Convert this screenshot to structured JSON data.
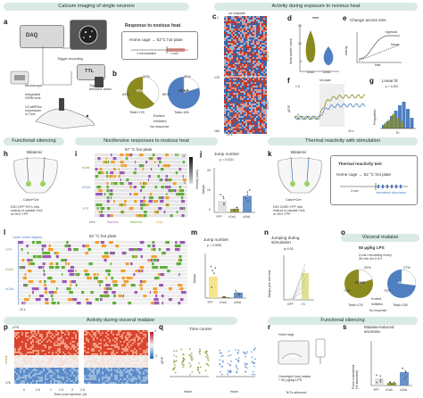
{
  "headers": {
    "calcium": "Calcium imaging of single neurons",
    "activity_heat": "Activity during exposure to noxious heat",
    "silencing": "Functional silencing",
    "nocifensive": "Nocifensive responses to noxious heat",
    "thermal": "Thermal reactivity with stimulation",
    "malaise": "Visceral malaise",
    "activity_malaise": "Activity during visceral malaise",
    "silencing2": "Functional silencing"
  },
  "panel_letters": [
    "a",
    "b",
    "c",
    "d",
    "e",
    "f",
    "g",
    "h",
    "i",
    "j",
    "k",
    "l",
    "m",
    "n",
    "o",
    "p",
    "q",
    "r",
    "s"
  ],
  "panel_a": {
    "daq": "DAQ",
    "trigger": "Trigger recording",
    "ttl": "TTL",
    "trigger_behavior": "Trigger\nbehavior video",
    "microscope": "Microscope",
    "grin": "Integrated\nGRIN lens",
    "gcamp": "GCaMP6m\nexpression\nin CeA"
  },
  "panel_b": {
    "title": "Response to noxious heat",
    "protocol": "Home cage → 52°C hot plate",
    "baseline": "2-min baseline",
    "stim": "1-min",
    "left_pct_top": "37%",
    "left_pct_left": "64%",
    "left_label": "rCeA",
    "left_total": "Total=178",
    "right_pct_top": "20%",
    "right_pct_left": "80%",
    "right_label": "cCeA",
    "right_total": "Total=166",
    "legend": [
      "Excited",
      "Inhibited",
      "No response"
    ]
  },
  "panel_c": {
    "top": "on hotplate",
    "rostral": "rostral",
    "caudal": "caudal",
    "n_top": "1",
    "n_mid": "178",
    "n_bottom": "166",
    "scale": "20 s"
  },
  "panel_d": {
    "ylabel": "Area under curve",
    "tick_top": "20",
    "tick_mid": "10",
    "tick_low": "0",
    "sig": "****",
    "xticks": [
      "rCeA",
      "cCeA"
    ]
  },
  "panel_e": {
    "title": "Change across time",
    "labels": [
      "sigmoid",
      "linear"
    ],
    "axis_y": "activity",
    "axis_x": "time"
  },
  "panel_f": {
    "ylabel": "ΔF/F",
    "scale": "20 s",
    "tick_top": "1.5",
    "tick_zero": "0",
    "stim": "hot plate"
  },
  "panel_g": {
    "title": "Linear fit",
    "pval": "p = 0.001",
    "ylabel": "Proportion",
    "xlabel": "R²",
    "ticks_x": [
      "0",
      "0.5",
      "1"
    ]
  },
  "panel_h": {
    "label": "Bilateral",
    "cre": "Calcrl^Cre",
    "text": "DIO GFP TeTx into\nrostral or caudal CeA\nor DIO YFP"
  },
  "panel_i": {
    "title": "57 °C hot plate",
    "rows": [
      "rCeA",
      "cCeA",
      "YFP"
    ],
    "legend": [
      "Paw lick",
      "Wall rear",
      "Jump"
    ],
    "cbar": "Velocity (cm/s)",
    "cbar_ticks": [
      "12",
      "0"
    ],
    "scale": "10 s"
  },
  "panel_j": {
    "title": "Jump number",
    "pval": "p = 0.0121",
    "ylabel": "Jumps",
    "ticks": [
      "20",
      "10",
      "0"
    ],
    "xticks": [
      "YFP",
      "rCeA",
      "cCeA"
    ],
    "values": [
      5.2,
      1.6,
      7.4
    ]
  },
  "panel_k": {
    "label": "Bilateral",
    "cre": "Calcrl^Cre",
    "text": "DIO ChR2:YFP into\nrostral or caudal CeA\nor DIO YFP"
  },
  "panel_k_test": {
    "title": "Thermal reactivity test",
    "protocol": "Home cage → 52 °C hot plate",
    "stim": "Intermittent stimulation",
    "duration": "2-min"
  },
  "panel_l": {
    "title": "52 °C hot plate",
    "laser": "Laser onset aligned",
    "rows": [
      "YFP",
      "rCeA",
      "cCeA"
    ],
    "scale": "10 s"
  },
  "panel_m": {
    "title": "Jump number",
    "pval": "p = 0.0005",
    "ylabel": "Jumps",
    "ticks": [
      "20",
      "10",
      "0"
    ],
    "xticks": [
      "YFP",
      "rCeA",
      "cCeA"
    ],
    "values": [
      9.6,
      0.4,
      2.4
    ]
  },
  "panel_n": {
    "title": "Jumping during\nstimulation",
    "pval": "p=0.03",
    "ylabel": "Jumps per second",
    "xticks": [
      "OFF",
      "ON"
    ]
  },
  "panel_o": {
    "dose": "50 µg/kg LPS",
    "protocol": "2-min recording every\n30 min for 2.5 h",
    "left_pct_top": "20%",
    "left_pct_left": "71%",
    "left_label": "rCeA",
    "left_total": "Total=176",
    "right_pct_top": "27%",
    "right_pct_left": "73%",
    "right_label": "cCeA",
    "right_total": "Total=138",
    "legend": [
      "Excited",
      "Inhibited",
      "No response"
    ]
  },
  "panel_p": {
    "top": "LPS",
    "rostral": "rostral",
    "n": "176",
    "ticks": [
      "0",
      "0.5",
      "1",
      "1.5",
      "2",
      "2.5"
    ],
    "xlabel": "Time post injection (h)",
    "cbar_top": "2",
    "cbar_bottom": "-2"
  },
  "panel_q": {
    "title": "Time course",
    "ylabel": "ΔF/F",
    "xlabel": "Hours",
    "ticks": [
      "0.5",
      "1",
      "1.5",
      "2",
      "2.5"
    ],
    "rows": [
      "rCeA",
      "cCeA"
    ]
  },
  "panel_r": {
    "label1": "Home cage",
    "text": "Overnight food intake\n+ 50 µg/kg LPS",
    "tetx": "TeTx-silenced"
  },
  "panel_s": {
    "title": "Malaise-induced\nanorexia",
    "ylabel": "Food consumed\n(% baseline)",
    "xticks": [
      "YFP",
      "rCeA",
      "cCeA"
    ],
    "values": [
      16,
      6,
      30
    ]
  },
  "colors": {
    "olive": "#8a8a1e",
    "blue": "#4f7fc0",
    "green": "#9bd15a",
    "purple": "#9b59b6",
    "orange": "#f0a030",
    "header": "#d9ebe3",
    "red": "#d9442d"
  }
}
